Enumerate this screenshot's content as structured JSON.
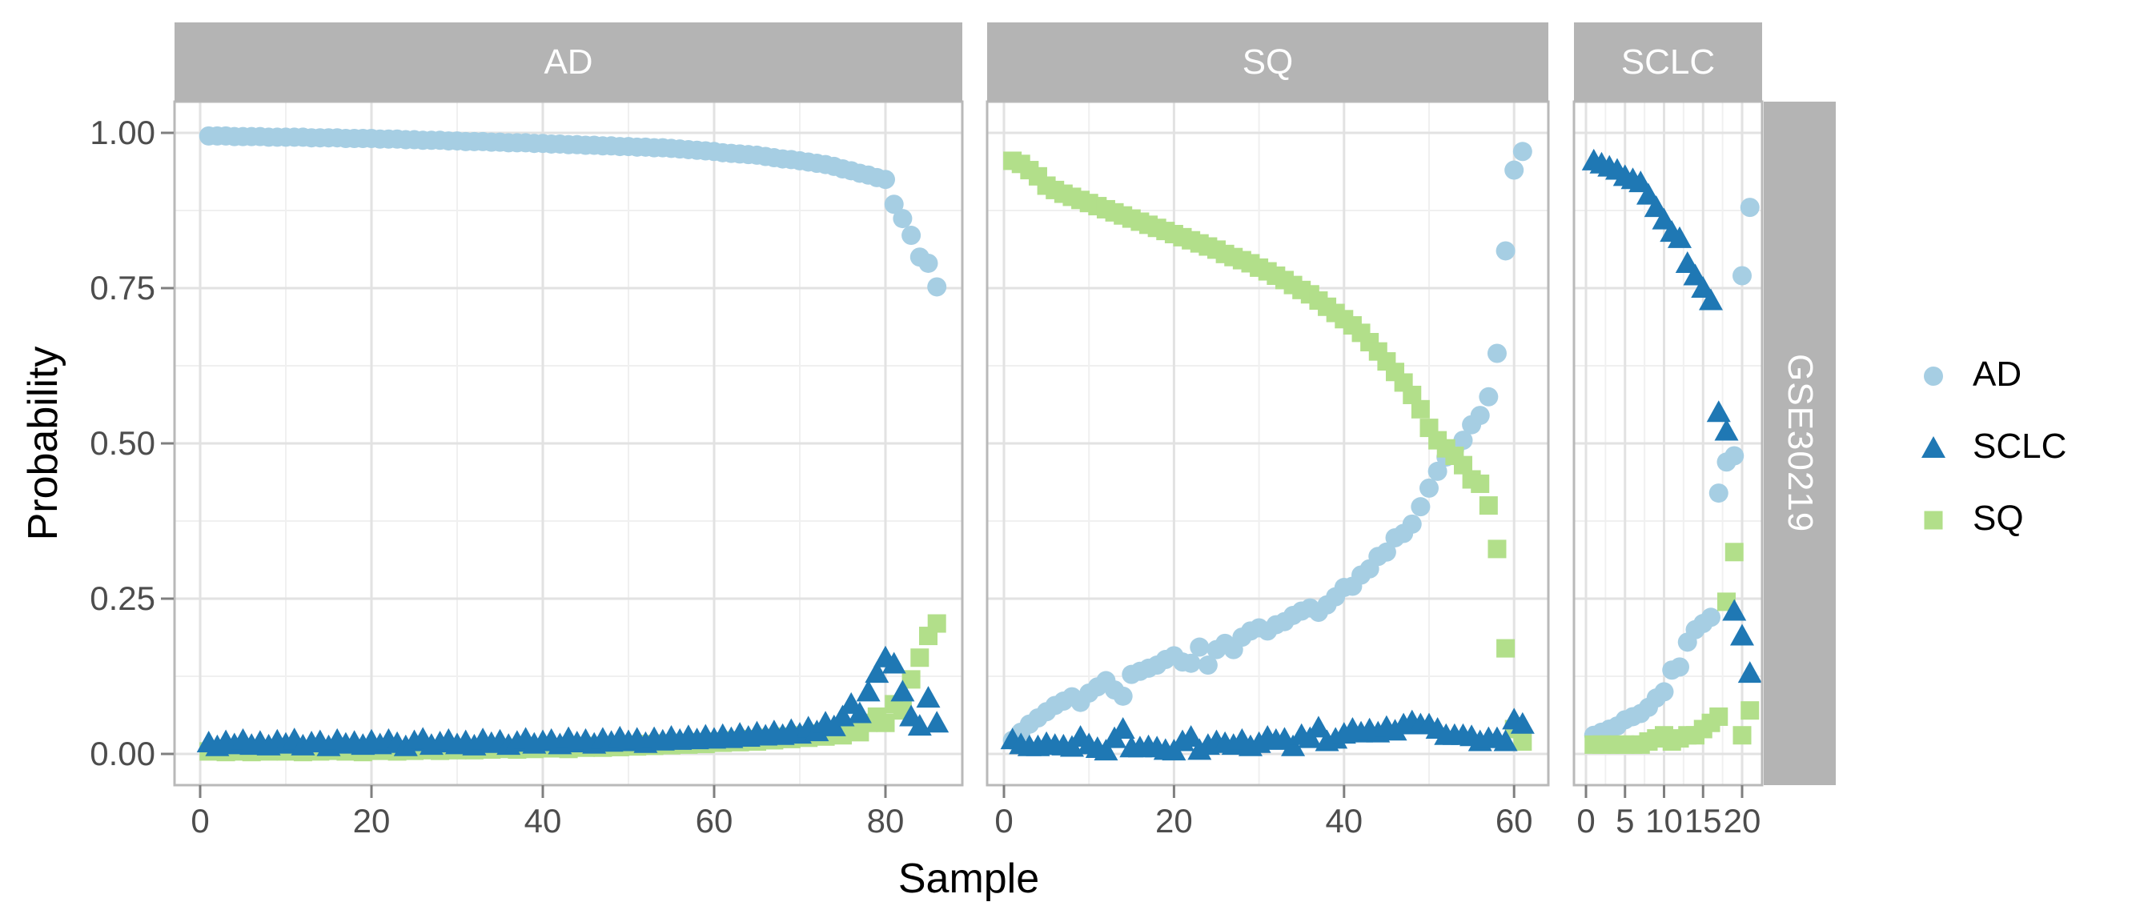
{
  "figure": {
    "kind": "faceted scatter plot",
    "dataset_strip": "GSE30219"
  },
  "axes": {
    "x": {
      "title": "Sample"
    },
    "y": {
      "title": "Probability",
      "range": [
        -0.05,
        1.05
      ],
      "ticks": [
        {
          "value": 0.0,
          "label": "0.00"
        },
        {
          "value": 0.25,
          "label": "0.25"
        },
        {
          "value": 0.5,
          "label": "0.50"
        },
        {
          "value": 0.75,
          "label": "0.75"
        },
        {
          "value": 1.0,
          "label": "1.00"
        }
      ],
      "minor_ticks": [
        0.125,
        0.375,
        0.625,
        0.875
      ]
    }
  },
  "facets": {
    "top": [
      "AD",
      "SQ",
      "SCLC"
    ],
    "right": "GSE30219"
  },
  "legend": {
    "position": "right",
    "items": [
      {
        "label": "AD",
        "shape": "circle",
        "color": "#a6cee3"
      },
      {
        "label": "SCLC",
        "shape": "triangle",
        "color": "#1f78b4"
      },
      {
        "label": "SQ",
        "shape": "square",
        "color": "#b2df8a"
      }
    ]
  },
  "colors": {
    "background": "#ffffff",
    "strip_fill": "#b4b4b4",
    "strip_text": "#ffffff",
    "grid_major": "#e2e2e2",
    "grid_minor": "#f0f0f0",
    "panel_border": "#b9b9b9",
    "axis_tick": "#7f7f7f",
    "tick_label": "#4d4d4d",
    "title": "#000000"
  },
  "chart_data": [
    {
      "type": "scatter",
      "facet": "AD",
      "n": 86,
      "x_description": "sample index 1..86 ordered by AD probability",
      "x_ticks": [
        0,
        20,
        40,
        60,
        80
      ],
      "x_tick_labels": [
        "0",
        "20",
        "40",
        "60",
        "80"
      ],
      "x_minor_ticks": [
        10,
        30,
        50,
        70
      ],
      "series": {
        "AD": [
          0.995,
          0.995,
          0.995,
          0.994,
          0.994,
          0.994,
          0.994,
          0.993,
          0.993,
          0.993,
          0.993,
          0.993,
          0.992,
          0.992,
          0.992,
          0.992,
          0.991,
          0.991,
          0.991,
          0.991,
          0.99,
          0.99,
          0.99,
          0.989,
          0.989,
          0.988,
          0.988,
          0.988,
          0.987,
          0.987,
          0.986,
          0.986,
          0.986,
          0.985,
          0.985,
          0.984,
          0.984,
          0.984,
          0.983,
          0.983,
          0.982,
          0.982,
          0.981,
          0.981,
          0.98,
          0.98,
          0.979,
          0.979,
          0.978,
          0.978,
          0.977,
          0.977,
          0.976,
          0.976,
          0.975,
          0.974,
          0.973,
          0.972,
          0.971,
          0.97,
          0.968,
          0.967,
          0.966,
          0.965,
          0.964,
          0.962,
          0.96,
          0.958,
          0.957,
          0.955,
          0.953,
          0.951,
          0.949,
          0.946,
          0.942,
          0.939,
          0.935,
          0.932,
          0.928,
          0.925,
          0.885,
          0.862,
          0.835,
          0.8,
          0.79,
          0.752
        ],
        "SCLC": [
          0.018,
          0.012,
          0.02,
          0.015,
          0.022,
          0.014,
          0.019,
          0.013,
          0.021,
          0.016,
          0.023,
          0.013,
          0.018,
          0.02,
          0.012,
          0.022,
          0.016,
          0.019,
          0.014,
          0.021,
          0.015,
          0.022,
          0.017,
          0.012,
          0.02,
          0.024,
          0.014,
          0.018,
          0.022,
          0.015,
          0.02,
          0.013,
          0.023,
          0.017,
          0.021,
          0.014,
          0.019,
          0.024,
          0.016,
          0.02,
          0.022,
          0.015,
          0.025,
          0.018,
          0.022,
          0.016,
          0.024,
          0.019,
          0.026,
          0.02,
          0.024,
          0.017,
          0.025,
          0.021,
          0.027,
          0.022,
          0.028,
          0.023,
          0.029,
          0.024,
          0.03,
          0.025,
          0.032,
          0.027,
          0.034,
          0.029,
          0.036,
          0.03,
          0.038,
          0.032,
          0.042,
          0.036,
          0.05,
          0.044,
          0.06,
          0.08,
          0.065,
          0.1,
          0.13,
          0.155,
          0.145,
          0.1,
          0.06,
          0.045,
          0.09,
          0.05
        ],
        "SQ": [
          0.004,
          0.005,
          0.003,
          0.005,
          0.004,
          0.003,
          0.005,
          0.004,
          0.006,
          0.004,
          0.005,
          0.003,
          0.006,
          0.004,
          0.005,
          0.006,
          0.004,
          0.005,
          0.003,
          0.006,
          0.005,
          0.006,
          0.004,
          0.007,
          0.005,
          0.006,
          0.008,
          0.005,
          0.007,
          0.006,
          0.008,
          0.006,
          0.009,
          0.007,
          0.008,
          0.01,
          0.007,
          0.009,
          0.008,
          0.01,
          0.009,
          0.011,
          0.008,
          0.012,
          0.01,
          0.013,
          0.01,
          0.014,
          0.011,
          0.015,
          0.012,
          0.016,
          0.013,
          0.017,
          0.014,
          0.018,
          0.015,
          0.019,
          0.016,
          0.02,
          0.018,
          0.022,
          0.019,
          0.024,
          0.02,
          0.026,
          0.022,
          0.028,
          0.024,
          0.03,
          0.026,
          0.033,
          0.028,
          0.036,
          0.03,
          0.04,
          0.035,
          0.05,
          0.06,
          0.05,
          0.08,
          0.07,
          0.12,
          0.155,
          0.19,
          0.21
        ]
      }
    },
    {
      "type": "scatter",
      "facet": "SQ",
      "n": 61,
      "x_description": "sample index 1..61 ordered by SQ probability",
      "x_ticks": [
        0,
        20,
        40,
        60
      ],
      "x_tick_labels": [
        "0",
        "20",
        "40",
        "60"
      ],
      "x_minor_ticks": [
        10,
        30,
        50
      ],
      "series": {
        "AD": [
          0.022,
          0.035,
          0.048,
          0.058,
          0.068,
          0.078,
          0.085,
          0.092,
          0.083,
          0.098,
          0.108,
          0.118,
          0.103,
          0.093,
          0.128,
          0.133,
          0.138,
          0.143,
          0.152,
          0.158,
          0.148,
          0.146,
          0.172,
          0.143,
          0.168,
          0.178,
          0.168,
          0.188,
          0.198,
          0.203,
          0.198,
          0.208,
          0.213,
          0.223,
          0.23,
          0.235,
          0.228,
          0.24,
          0.253,
          0.268,
          0.27,
          0.288,
          0.298,
          0.318,
          0.325,
          0.348,
          0.355,
          0.37,
          0.398,
          0.428,
          0.455,
          0.478,
          0.49,
          0.505,
          0.53,
          0.545,
          0.575,
          0.645,
          0.81,
          0.94,
          0.97
        ],
        "SCLC": [
          0.023,
          0.015,
          0.012,
          0.012,
          0.017,
          0.014,
          0.013,
          0.011,
          0.027,
          0.015,
          0.009,
          0.005,
          0.025,
          0.04,
          0.01,
          0.01,
          0.012,
          0.01,
          0.006,
          0.005,
          0.02,
          0.027,
          0.006,
          0.014,
          0.02,
          0.017,
          0.014,
          0.022,
          0.012,
          0.017,
          0.027,
          0.022,
          0.024,
          0.012,
          0.03,
          0.025,
          0.042,
          0.02,
          0.024,
          0.032,
          0.04,
          0.034,
          0.039,
          0.034,
          0.043,
          0.037,
          0.047,
          0.052,
          0.047,
          0.047,
          0.04,
          0.03,
          0.03,
          0.03,
          0.028,
          0.02,
          0.025,
          0.025,
          0.02,
          0.055,
          0.048
        ],
        "SQ": [
          0.955,
          0.95,
          0.94,
          0.93,
          0.915,
          0.908,
          0.902,
          0.897,
          0.892,
          0.887,
          0.882,
          0.877,
          0.872,
          0.867,
          0.862,
          0.857,
          0.852,
          0.847,
          0.842,
          0.837,
          0.832,
          0.827,
          0.822,
          0.817,
          0.812,
          0.805,
          0.8,
          0.795,
          0.79,
          0.783,
          0.777,
          0.77,
          0.763,
          0.755,
          0.747,
          0.74,
          0.73,
          0.72,
          0.71,
          0.7,
          0.69,
          0.678,
          0.663,
          0.648,
          0.632,
          0.615,
          0.598,
          0.578,
          0.555,
          0.525,
          0.505,
          0.492,
          0.48,
          0.465,
          0.442,
          0.435,
          0.4,
          0.33,
          0.17,
          0.04,
          0.02
        ]
      }
    },
    {
      "type": "scatter",
      "facet": "SCLC",
      "n": 21,
      "x_description": "sample index 1..21 ordered by SCLC probability",
      "x_ticks": [
        0,
        5,
        10,
        15,
        20
      ],
      "x_tick_labels": [
        "0",
        "5",
        "10",
        "15",
        "20"
      ],
      "x_minor_ticks": [
        2.5,
        7.5,
        12.5,
        17.5
      ],
      "series": {
        "AD": [
          0.03,
          0.035,
          0.04,
          0.045,
          0.055,
          0.06,
          0.065,
          0.075,
          0.09,
          0.1,
          0.135,
          0.14,
          0.18,
          0.2,
          0.21,
          0.22,
          0.42,
          0.47,
          0.48,
          0.77,
          0.88
        ],
        "SCLC": [
          0.955,
          0.95,
          0.945,
          0.94,
          0.93,
          0.925,
          0.92,
          0.9,
          0.88,
          0.86,
          0.84,
          0.83,
          0.79,
          0.77,
          0.75,
          0.73,
          0.55,
          0.52,
          0.23,
          0.19,
          0.13
        ],
        "SQ": [
          0.015,
          0.015,
          0.015,
          0.015,
          0.015,
          0.015,
          0.015,
          0.02,
          0.025,
          0.03,
          0.02,
          0.025,
          0.03,
          0.03,
          0.04,
          0.05,
          0.06,
          0.245,
          0.325,
          0.03,
          0.07
        ]
      }
    }
  ]
}
